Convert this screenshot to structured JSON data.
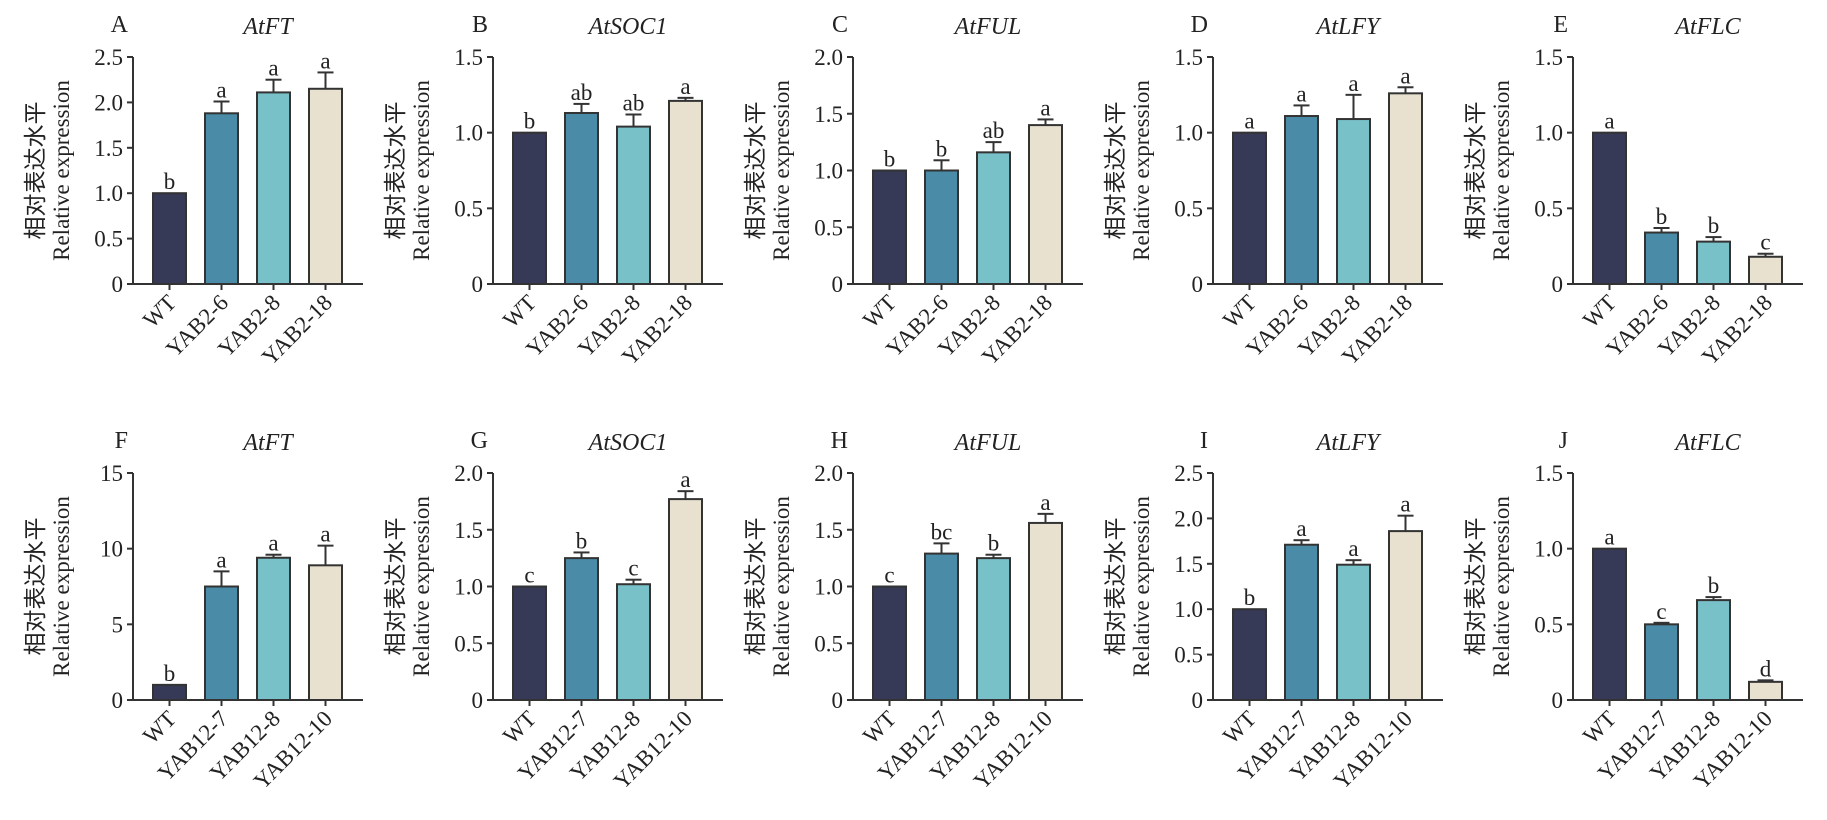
{
  "figure": {
    "ylabel_cn": "相对表达水平",
    "ylabel_en": "Relative expression",
    "colors": [
      "#363a56",
      "#4a8ba7",
      "#79c1c8",
      "#e8e1cf"
    ],
    "axis_color": "#333333"
  },
  "chart_data": [
    {
      "type": "bar",
      "panel": "A",
      "title": "AtFT",
      "categories": [
        "WT",
        "YAB2-6",
        "YAB2-8",
        "YAB2-18"
      ],
      "values": [
        1.0,
        1.88,
        2.11,
        2.15
      ],
      "errors": [
        0,
        0.13,
        0.14,
        0.18
      ],
      "significance": [
        "b",
        "a",
        "a",
        "a"
      ],
      "ylim": [
        0,
        2.5
      ],
      "yticks": [
        "0",
        "0.5",
        "1.0",
        "1.5",
        "2.0",
        "2.5"
      ],
      "ytick_values": [
        0,
        0.5,
        1.0,
        1.5,
        2.0,
        2.5
      ],
      "ylabel": "相对表达水平 Relative expression",
      "xlabel": ""
    },
    {
      "type": "bar",
      "panel": "B",
      "title": "AtSOC1",
      "categories": [
        "WT",
        "YAB2-6",
        "YAB2-8",
        "YAB2-18"
      ],
      "values": [
        1.0,
        1.13,
        1.04,
        1.21
      ],
      "errors": [
        0,
        0.06,
        0.08,
        0.02
      ],
      "significance": [
        "b",
        "ab",
        "ab",
        "a"
      ],
      "ylim": [
        0,
        1.5
      ],
      "yticks": [
        "0",
        "0.5",
        "1.0",
        "1.5"
      ],
      "ytick_values": [
        0,
        0.5,
        1.0,
        1.5
      ],
      "ylabel": "相对表达水平 Relative expression",
      "xlabel": ""
    },
    {
      "type": "bar",
      "panel": "C",
      "title": "AtFUL",
      "categories": [
        "WT",
        "YAB2-6",
        "YAB2-8",
        "YAB2-18"
      ],
      "values": [
        1.0,
        1.0,
        1.16,
        1.4
      ],
      "errors": [
        0,
        0.09,
        0.09,
        0.05
      ],
      "significance": [
        "b",
        "b",
        "ab",
        "a"
      ],
      "ylim": [
        0,
        2.0
      ],
      "yticks": [
        "0",
        "0.5",
        "1.0",
        "1.5",
        "2.0"
      ],
      "ytick_values": [
        0,
        0.5,
        1.0,
        1.5,
        2.0
      ],
      "ylabel": "相对表达水平 Relative expression",
      "xlabel": ""
    },
    {
      "type": "bar",
      "panel": "D",
      "title": "AtLFY",
      "categories": [
        "WT",
        "YAB2-6",
        "YAB2-8",
        "YAB2-18"
      ],
      "values": [
        1.0,
        1.11,
        1.09,
        1.26
      ],
      "errors": [
        0,
        0.07,
        0.16,
        0.04
      ],
      "significance": [
        "a",
        "a",
        "a",
        "a"
      ],
      "ylim": [
        0,
        1.5
      ],
      "yticks": [
        "0",
        "0.5",
        "1.0",
        "1.5"
      ],
      "ytick_values": [
        0,
        0.5,
        1.0,
        1.5
      ],
      "ylabel": "相对表达水平 Relative expression",
      "xlabel": ""
    },
    {
      "type": "bar",
      "panel": "E",
      "title": "AtFLC",
      "categories": [
        "WT",
        "YAB2-6",
        "YAB2-8",
        "YAB2-18"
      ],
      "values": [
        1.0,
        0.34,
        0.28,
        0.18
      ],
      "errors": [
        0,
        0.03,
        0.03,
        0.02
      ],
      "significance": [
        "a",
        "b",
        "b",
        "c"
      ],
      "ylim": [
        0,
        1.5
      ],
      "yticks": [
        "0",
        "0.5",
        "1.0",
        "1.5"
      ],
      "ytick_values": [
        0,
        0.5,
        1.0,
        1.5
      ],
      "ylabel": "相对表达水平 Relative expression",
      "xlabel": ""
    },
    {
      "type": "bar",
      "panel": "F",
      "title": "AtFT",
      "categories": [
        "WT",
        "YAB12-7",
        "YAB12-8",
        "YAB12-10"
      ],
      "values": [
        1.0,
        7.5,
        9.4,
        8.9
      ],
      "errors": [
        0,
        1.0,
        0.2,
        1.3
      ],
      "significance": [
        "b",
        "a",
        "a",
        "a"
      ],
      "ylim": [
        0,
        15
      ],
      "yticks": [
        "0",
        "5",
        "10",
        "15"
      ],
      "ytick_values": [
        0,
        5,
        10,
        15
      ],
      "ylabel": "相对表达水平 Relative expression",
      "xlabel": ""
    },
    {
      "type": "bar",
      "panel": "G",
      "title": "AtSOC1",
      "categories": [
        "WT",
        "YAB12-7",
        "YAB12-8",
        "YAB12-10"
      ],
      "values": [
        1.0,
        1.25,
        1.02,
        1.77
      ],
      "errors": [
        0,
        0.05,
        0.04,
        0.07
      ],
      "significance": [
        "c",
        "b",
        "c",
        "a"
      ],
      "ylim": [
        0,
        2.0
      ],
      "yticks": [
        "0",
        "0.5",
        "1.0",
        "1.5",
        "2.0"
      ],
      "ytick_values": [
        0,
        0.5,
        1.0,
        1.5,
        2.0
      ],
      "ylabel": "相对表达水平 Relative expression",
      "xlabel": ""
    },
    {
      "type": "bar",
      "panel": "H",
      "title": "AtFUL",
      "categories": [
        "WT",
        "YAB12-7",
        "YAB12-8",
        "YAB12-10"
      ],
      "values": [
        1.0,
        1.29,
        1.25,
        1.56
      ],
      "errors": [
        0,
        0.09,
        0.03,
        0.08
      ],
      "significance": [
        "c",
        "bc",
        "b",
        "a"
      ],
      "ylim": [
        0,
        2.0
      ],
      "yticks": [
        "0",
        "0.5",
        "1.0",
        "1.5",
        "2.0"
      ],
      "ytick_values": [
        0,
        0.5,
        1.0,
        1.5,
        2.0
      ],
      "ylabel": "相对表达水平 Relative expression",
      "xlabel": ""
    },
    {
      "type": "bar",
      "panel": "I",
      "title": "AtLFY",
      "categories": [
        "WT",
        "YAB12-7",
        "YAB12-8",
        "YAB12-10"
      ],
      "values": [
        1.0,
        1.71,
        1.49,
        1.86
      ],
      "errors": [
        0,
        0.05,
        0.05,
        0.17
      ],
      "significance": [
        "b",
        "a",
        "a",
        "a"
      ],
      "ylim": [
        0,
        2.5
      ],
      "yticks": [
        "0",
        "0.5",
        "1.0",
        "1.5",
        "2.0",
        "2.5"
      ],
      "ytick_values": [
        0,
        0.5,
        1.0,
        1.5,
        2.0,
        2.5
      ],
      "ylabel": "相对表达水平 Relative expression",
      "xlabel": ""
    },
    {
      "type": "bar",
      "panel": "J",
      "title": "AtFLC",
      "categories": [
        "WT",
        "YAB12-7",
        "YAB12-8",
        "YAB12-10"
      ],
      "values": [
        1.0,
        0.5,
        0.66,
        0.12
      ],
      "errors": [
        0,
        0.01,
        0.02,
        0.01
      ],
      "significance": [
        "a",
        "c",
        "b",
        "d"
      ],
      "ylim": [
        0,
        1.5
      ],
      "yticks": [
        "0",
        "0.5",
        "1.0",
        "1.5"
      ],
      "ytick_values": [
        0,
        0.5,
        1.0,
        1.5
      ],
      "ylabel": "相对表达水平 Relative expression",
      "xlabel": ""
    }
  ]
}
